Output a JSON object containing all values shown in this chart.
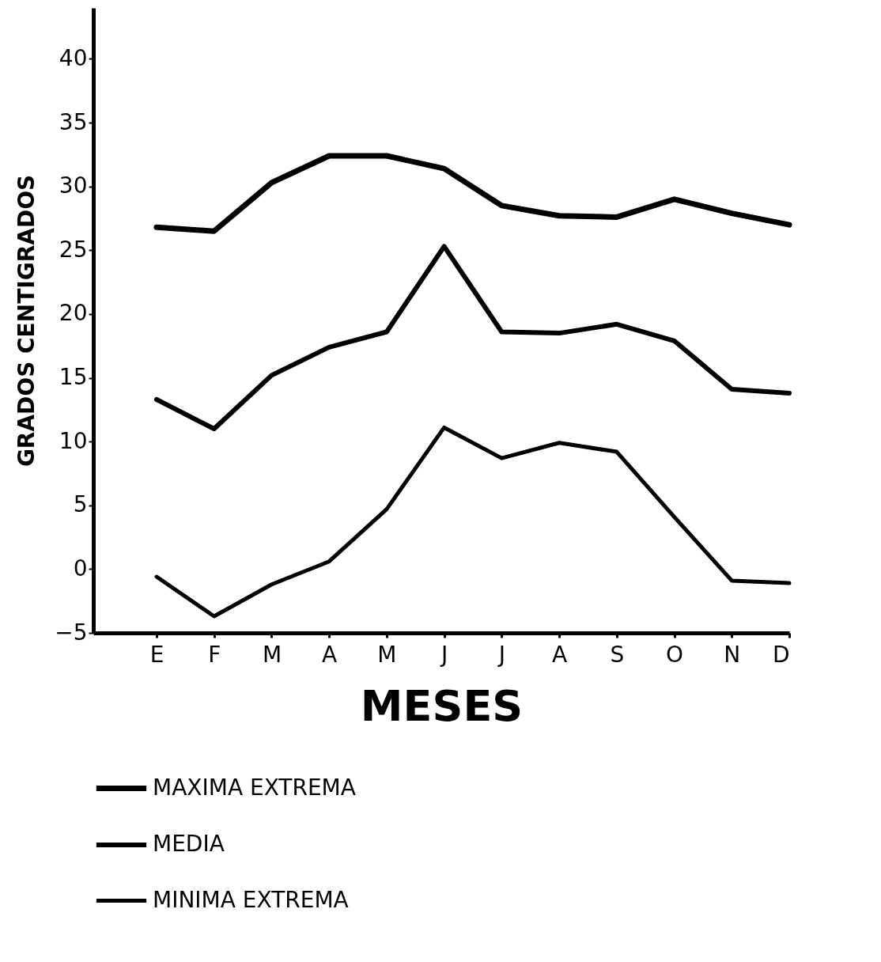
{
  "chart_data": {
    "type": "line",
    "xlabel": "MESES",
    "ylabel": "GRADOS   CENTIGRADOS",
    "categories": [
      "E",
      "F",
      "M",
      "A",
      "M",
      "J",
      "J",
      "A",
      "S",
      "O",
      "N",
      "D"
    ],
    "series": [
      {
        "name": "MAXIMA EXTREMA",
        "color": "#000000",
        "values": [
          26.8,
          26.5,
          30.3,
          32.4,
          32.4,
          31.4,
          28.5,
          27.7,
          27.6,
          29.0,
          27.9,
          27.0
        ]
      },
      {
        "name": "MEDIA",
        "color": "#000000",
        "values": [
          13.3,
          11.0,
          15.2,
          17.4,
          18.6,
          25.3,
          18.6,
          18.5,
          19.2,
          17.9,
          14.1,
          13.8
        ]
      },
      {
        "name": "MINIMA EXTREMA",
        "color": "#000000",
        "values": [
          -0.6,
          -3.7,
          -1.2,
          0.6,
          4.7,
          11.1,
          8.7,
          9.9,
          9.2,
          4.1,
          -0.9,
          -1.1
        ]
      }
    ],
    "ylim": [
      -5,
      44
    ],
    "yticks": [
      -5,
      0,
      5,
      10,
      15,
      20,
      25,
      30,
      35,
      40
    ],
    "grid": false,
    "legend": "bottom",
    "marker": "none",
    "line_style": "solid"
  }
}
